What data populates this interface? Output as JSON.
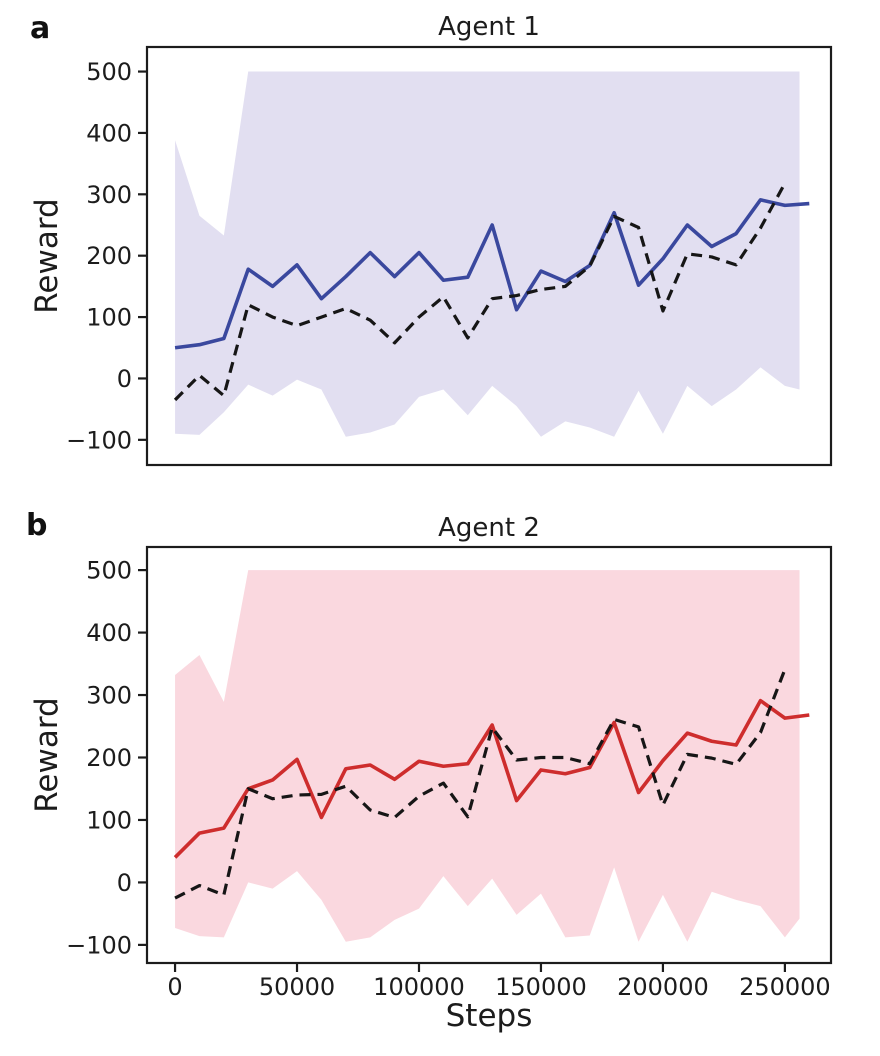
{
  "figure": {
    "background": "#ffffff",
    "panels": [
      {
        "letter": "a",
        "title": "Agent 1",
        "ylabel": "Reward",
        "xlabel": ""
      },
      {
        "letter": "b",
        "title": "Agent 2",
        "ylabel": "Reward",
        "xlabel": "Steps"
      }
    ]
  },
  "chart_data": [
    {
      "type": "line",
      "title": "Agent 1",
      "xlabel": "",
      "ylabel": "Reward",
      "xlim": [
        -11500,
        268900
      ],
      "ylim": [
        -141,
        540
      ],
      "grid": false,
      "legend": "none",
      "xticks": [],
      "yticks": [
        {
          "value": -100,
          "label": "−100"
        },
        {
          "value": 0,
          "label": "0"
        },
        {
          "value": 100,
          "label": "100"
        },
        {
          "value": 200,
          "label": "200"
        },
        {
          "value": 300,
          "label": "300"
        },
        {
          "value": 400,
          "label": "400"
        },
        {
          "value": 500,
          "label": "500"
        }
      ],
      "series": [
        {
          "name": "agent-1-mean-reward",
          "style": "solid",
          "color": "#3a489e",
          "width": 3.6,
          "x": [
            0,
            10000,
            20000,
            30000,
            40000,
            50000,
            60000,
            70000,
            80000,
            90000,
            100000,
            110000,
            120000,
            130000,
            140000,
            150000,
            160000,
            170000,
            180000,
            190000,
            200000,
            210000,
            220000,
            230000,
            240000,
            250000,
            260000
          ],
          "values": [
            50,
            55,
            65,
            178,
            150,
            185,
            130,
            166,
            205,
            166,
            205,
            160,
            165,
            250,
            112,
            175,
            158,
            184,
            270,
            152,
            195,
            250,
            215,
            236,
            291,
            282,
            285
          ]
        },
        {
          "name": "agent-1-baseline",
          "style": "dashed",
          "color": "#161616",
          "width": 3.2,
          "x": [
            0,
            10000,
            20000,
            30000,
            40000,
            50000,
            60000,
            70000,
            80000,
            90000,
            100000,
            110000,
            120000,
            130000,
            140000,
            150000,
            160000,
            170000,
            180000,
            190000,
            200000,
            210000,
            220000,
            230000,
            240000,
            250000
          ],
          "values": [
            -35,
            5,
            -28,
            120,
            100,
            86,
            100,
            114,
            95,
            58,
            100,
            133,
            66,
            130,
            135,
            145,
            150,
            183,
            264,
            246,
            110,
            203,
            198,
            185,
            245,
            318
          ]
        }
      ],
      "band": {
        "name": "agent-1-min-max-band",
        "color": "#e2dff1",
        "x": [
          0,
          10000,
          20000,
          30000,
          40000,
          50000,
          60000,
          70000,
          80000,
          90000,
          100000,
          110000,
          120000,
          130000,
          140000,
          150000,
          160000,
          170000,
          180000,
          190000,
          200000,
          210000,
          220000,
          230000,
          240000,
          250000,
          256000
        ],
        "upper": [
          388,
          265,
          233,
          500,
          500,
          500,
          500,
          500,
          500,
          500,
          500,
          500,
          500,
          500,
          500,
          500,
          500,
          500,
          500,
          500,
          500,
          500,
          500,
          500,
          500,
          500,
          500
        ],
        "lower": [
          -90,
          -92,
          -55,
          -10,
          -28,
          -2,
          -18,
          -95,
          -88,
          -75,
          -30,
          -18,
          -60,
          -12,
          -45,
          -95,
          -70,
          -80,
          -95,
          -20,
          -90,
          -12,
          -45,
          -18,
          18,
          -12,
          -18
        ]
      }
    },
    {
      "type": "line",
      "title": "Agent 2",
      "xlabel": "Steps",
      "ylabel": "Reward",
      "xlim": [
        -11500,
        268900
      ],
      "ylim": [
        -129,
        537
      ],
      "grid": false,
      "legend": "none",
      "xticks": [
        {
          "value": 0,
          "label": "0"
        },
        {
          "value": 50000,
          "label": "50000"
        },
        {
          "value": 100000,
          "label": "100000"
        },
        {
          "value": 150000,
          "label": "150000"
        },
        {
          "value": 200000,
          "label": "200000"
        },
        {
          "value": 250000,
          "label": "250000"
        }
      ],
      "yticks": [
        {
          "value": -100,
          "label": "−100"
        },
        {
          "value": 0,
          "label": "0"
        },
        {
          "value": 100,
          "label": "100"
        },
        {
          "value": 200,
          "label": "200"
        },
        {
          "value": 300,
          "label": "300"
        },
        {
          "value": 400,
          "label": "400"
        },
        {
          "value": 500,
          "label": "500"
        }
      ],
      "series": [
        {
          "name": "agent-2-mean-reward",
          "style": "solid",
          "color": "#ce2d2d",
          "width": 3.6,
          "x": [
            0,
            10000,
            20000,
            30000,
            40000,
            50000,
            60000,
            70000,
            80000,
            90000,
            100000,
            110000,
            120000,
            130000,
            140000,
            150000,
            160000,
            170000,
            180000,
            190000,
            200000,
            210000,
            220000,
            230000,
            240000,
            250000,
            260000
          ],
          "values": [
            40,
            79,
            87,
            150,
            164,
            197,
            104,
            182,
            188,
            165,
            194,
            186,
            190,
            252,
            131,
            180,
            174,
            184,
            256,
            144,
            195,
            239,
            226,
            220,
            291,
            263,
            268
          ]
        },
        {
          "name": "agent-2-baseline",
          "style": "dashed",
          "color": "#161616",
          "width": 3.2,
          "x": [
            0,
            10000,
            20000,
            30000,
            40000,
            50000,
            60000,
            70000,
            80000,
            90000,
            100000,
            110000,
            120000,
            130000,
            140000,
            150000,
            160000,
            170000,
            180000,
            190000,
            200000,
            210000,
            220000,
            230000,
            240000,
            250000
          ],
          "values": [
            -25,
            -5,
            -20,
            150,
            134,
            140,
            141,
            154,
            116,
            104,
            138,
            159,
            105,
            248,
            196,
            200,
            200,
            190,
            261,
            249,
            124,
            205,
            199,
            189,
            240,
            341
          ]
        }
      ],
      "band": {
        "name": "agent-2-min-max-band",
        "color": "#fad8df",
        "x": [
          0,
          10000,
          20000,
          30000,
          40000,
          50000,
          60000,
          70000,
          80000,
          90000,
          100000,
          110000,
          120000,
          130000,
          140000,
          150000,
          160000,
          170000,
          180000,
          190000,
          200000,
          210000,
          220000,
          230000,
          240000,
          250000,
          256000
        ],
        "upper": [
          332,
          364,
          289,
          500,
          500,
          500,
          500,
          500,
          500,
          500,
          500,
          500,
          500,
          500,
          500,
          500,
          500,
          500,
          500,
          500,
          500,
          500,
          500,
          500,
          500,
          500,
          500
        ],
        "lower": [
          -73,
          -86,
          -88,
          0,
          -10,
          18,
          -28,
          -95,
          -88,
          -60,
          -42,
          10,
          -38,
          6,
          -52,
          -18,
          -88,
          -85,
          24,
          -95,
          -20,
          -95,
          -15,
          -28,
          -38,
          -88,
          -58
        ]
      }
    }
  ]
}
